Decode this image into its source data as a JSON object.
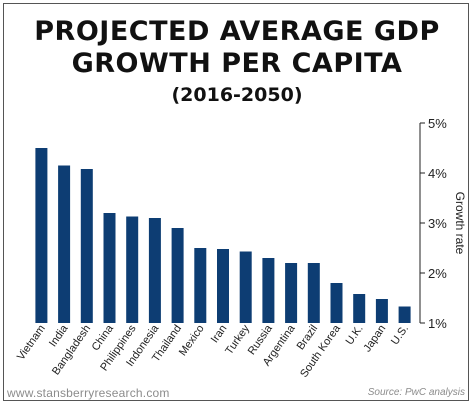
{
  "header": {
    "title_line1": "PROJECTED AVERAGE GDP",
    "title_line2": "GROWTH PER CAPITA",
    "subtitle": "(2016-2050)"
  },
  "footer": {
    "website": "www.stansberryresearch.com",
    "source": "Source: PwC analysis"
  },
  "chart_data": {
    "type": "bar",
    "title": "PROJECTED AVERAGE GDP GROWTH PER CAPITA",
    "subtitle": "(2016-2050)",
    "xlabel": "",
    "ylabel": "Growth rate",
    "categories": [
      "Vietnam",
      "India",
      "Bangladesh",
      "China",
      "Philippines",
      "Indonesia",
      "Thailand",
      "Mexico",
      "Iran",
      "Turkey",
      "Russia",
      "Argentina",
      "Brazil",
      "South Korea",
      "U.K.",
      "Japan",
      "U.S."
    ],
    "values": [
      4.5,
      4.15,
      4.08,
      3.2,
      3.13,
      3.1,
      2.9,
      2.5,
      2.48,
      2.43,
      2.3,
      2.2,
      2.2,
      1.8,
      1.58,
      1.48,
      1.33
    ],
    "y_ticks": [
      "1%",
      "2%",
      "3%",
      "4%",
      "5%"
    ],
    "y_tick_values": [
      1,
      2,
      3,
      4,
      5
    ],
    "ylim": [
      1,
      5
    ],
    "y_axis_side": "right",
    "grid": false,
    "bar_color": "#0d3d73"
  }
}
